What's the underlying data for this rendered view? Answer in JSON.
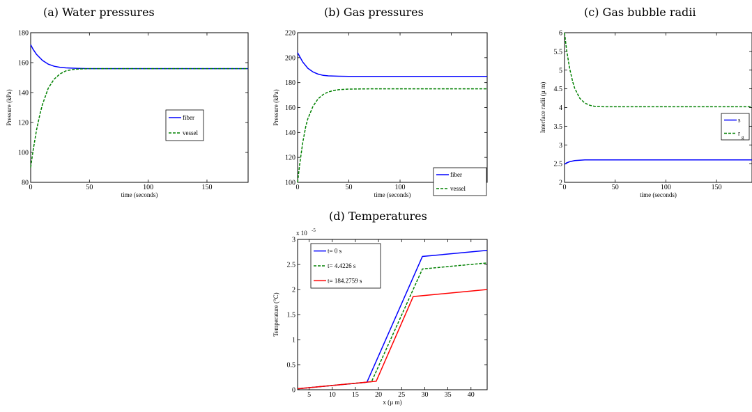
{
  "chart_data": [
    {
      "panel_caption": "(a) Water pressures",
      "type": "line",
      "xlabel": "time (seconds)",
      "ylabel": "Pressure (kPa)",
      "xlim": [
        0,
        185
      ],
      "ylim": [
        80,
        180
      ],
      "xticks": [
        0,
        50,
        100,
        150
      ],
      "yticks": [
        80,
        100,
        120,
        140,
        160,
        180
      ],
      "legend_position": "right",
      "series": [
        {
          "name": "fiber",
          "color": "#0000ff",
          "style": "solid",
          "x": [
            0,
            2,
            5,
            10,
            15,
            20,
            25,
            30,
            40,
            50,
            75,
            100,
            150,
            185
          ],
          "y": [
            172,
            169,
            165.5,
            161.5,
            159,
            157.6,
            156.9,
            156.5,
            156.2,
            156,
            156,
            156,
            156,
            156
          ]
        },
        {
          "name": "vessel",
          "color": "#008000",
          "style": "dashed",
          "x": [
            0,
            2,
            5,
            8,
            10,
            15,
            20,
            25,
            30,
            35,
            40,
            50,
            75,
            100,
            150,
            185
          ],
          "y": [
            90,
            101,
            115,
            126,
            132,
            143,
            149,
            152.5,
            154.5,
            155.3,
            155.7,
            156,
            156,
            156,
            156,
            156
          ]
        }
      ]
    },
    {
      "panel_caption": "(b) Gas pressures",
      "type": "line",
      "xlabel": "time (seconds)",
      "ylabel": "Pressure (kPa)",
      "xlim": [
        0,
        185
      ],
      "ylim": [
        100,
        220
      ],
      "xticks": [
        0,
        50,
        100,
        150
      ],
      "yticks": [
        100,
        120,
        140,
        160,
        180,
        200,
        220
      ],
      "legend_position": "bottom-right",
      "series": [
        {
          "name": "fiber",
          "color": "#0000ff",
          "style": "solid",
          "x": [
            0,
            2,
            5,
            10,
            15,
            20,
            25,
            30,
            40,
            50,
            75,
            100,
            150,
            185
          ],
          "y": [
            204,
            201,
            196.5,
            191.5,
            188.5,
            186.8,
            185.8,
            185.4,
            185.1,
            185,
            185,
            185,
            185,
            185
          ]
        },
        {
          "name": "vessel",
          "color": "#008000",
          "style": "dashed",
          "x": [
            0,
            2,
            5,
            8,
            10,
            15,
            20,
            25,
            30,
            35,
            40,
            50,
            75,
            100,
            150,
            185
          ],
          "y": [
            100,
            114,
            132,
            145,
            151,
            161,
            167,
            170.5,
            172.5,
            173.6,
            174.3,
            174.8,
            175,
            175,
            175,
            175
          ]
        }
      ]
    },
    {
      "panel_caption": "(c) Gas bubble radii",
      "type": "line",
      "xlabel": "time (seconds)",
      "ylabel": "Interface radii (µ m)",
      "xlim": [
        0,
        185
      ],
      "ylim": [
        2,
        6
      ],
      "xticks": [
        0,
        50,
        100,
        150
      ],
      "yticks": [
        2,
        2.5,
        3,
        3.5,
        4,
        4.5,
        5,
        5.5,
        6
      ],
      "legend_position": "right",
      "series": [
        {
          "name": "s",
          "color": "#0000ff",
          "style": "solid",
          "x": [
            0,
            2,
            5,
            10,
            15,
            20,
            30,
            50,
            100,
            185
          ],
          "y": [
            2.48,
            2.52,
            2.55,
            2.58,
            2.59,
            2.6,
            2.6,
            2.6,
            2.6,
            2.6
          ]
        },
        {
          "name": "r",
          "subscript": "g",
          "color": "#008000",
          "style": "dashed",
          "x": [
            0,
            2,
            5,
            8,
            10,
            15,
            20,
            25,
            30,
            40,
            50,
            100,
            185
          ],
          "y": [
            6,
            5.55,
            5.05,
            4.7,
            4.52,
            4.25,
            4.12,
            4.06,
            4.03,
            4.02,
            4.02,
            4.02,
            4.02
          ]
        }
      ]
    },
    {
      "panel_caption": "(d) Temperatures",
      "type": "line",
      "xlabel": "x (µ m)",
      "ylabel": "Temperature (°C)",
      "y_multiplier": "x 10",
      "y_multiplier_exponent": "-5",
      "xlim": [
        2.5,
        43.5
      ],
      "ylim": [
        0,
        3
      ],
      "xticks": [
        5,
        10,
        15,
        20,
        25,
        30,
        35,
        40
      ],
      "yticks": [
        0,
        0.5,
        1,
        1.5,
        2,
        2.5,
        3
      ],
      "legend_position": "top-left",
      "series": [
        {
          "name": "t=  0 s",
          "color": "#0000ff",
          "style": "solid",
          "x": [
            2.5,
            17.5,
            29.5,
            43.5
          ],
          "y": [
            0.02,
            0.15,
            2.66,
            2.78
          ]
        },
        {
          "name": "t= 4.4226 s",
          "color": "#008000",
          "style": "dashed",
          "x": [
            2.5,
            18.5,
            29.5,
            43.5
          ],
          "y": [
            0.02,
            0.16,
            2.41,
            2.53
          ]
        },
        {
          "name": "t= 184.2759 s",
          "color": "#ff0000",
          "style": "solid",
          "x": [
            2.5,
            19.5,
            27.5,
            43.5
          ],
          "y": [
            0.02,
            0.17,
            1.86,
            2.0
          ]
        }
      ]
    }
  ]
}
